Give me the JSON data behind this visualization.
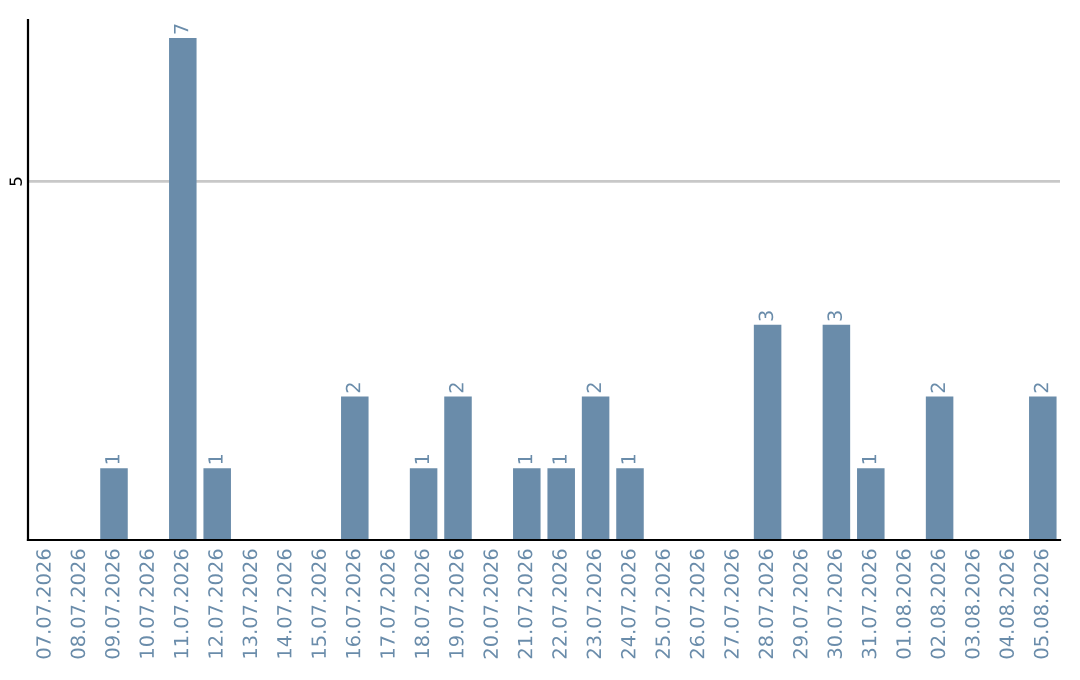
{
  "chart_data": {
    "type": "bar",
    "categories": [
      "07.07.2026",
      "08.07.2026",
      "09.07.2026",
      "10.07.2026",
      "11.07.2026",
      "12.07.2026",
      "13.07.2026",
      "14.07.2026",
      "15.07.2026",
      "16.07.2026",
      "17.07.2026",
      "18.07.2026",
      "19.07.2026",
      "20.07.2026",
      "21.07.2026",
      "22.07.2026",
      "23.07.2026",
      "24.07.2026",
      "25.07.2026",
      "26.07.2026",
      "27.07.2026",
      "28.07.2026",
      "29.07.2026",
      "30.07.2026",
      "31.07.2026",
      "01.08.2026",
      "02.08.2026",
      "03.08.2026",
      "04.08.2026",
      "05.08.2026"
    ],
    "values": [
      0,
      0,
      1,
      0,
      7,
      1,
      0,
      0,
      0,
      2,
      0,
      1,
      2,
      0,
      1,
      1,
      2,
      1,
      0,
      0,
      0,
      3,
      0,
      3,
      1,
      0,
      2,
      0,
      0,
      2
    ],
    "value_labels": [
      null,
      null,
      "1",
      null,
      "7",
      "1",
      null,
      null,
      null,
      "2",
      null,
      "1",
      "2",
      null,
      "1",
      "1",
      "2",
      "1",
      null,
      null,
      null,
      "3",
      null,
      "3",
      "1",
      null,
      "2",
      null,
      null,
      "2"
    ],
    "color": "#6a8caa",
    "ylim": [
      0,
      7.25
    ],
    "yticks": [
      5
    ],
    "grid": "y",
    "legend": false
  }
}
